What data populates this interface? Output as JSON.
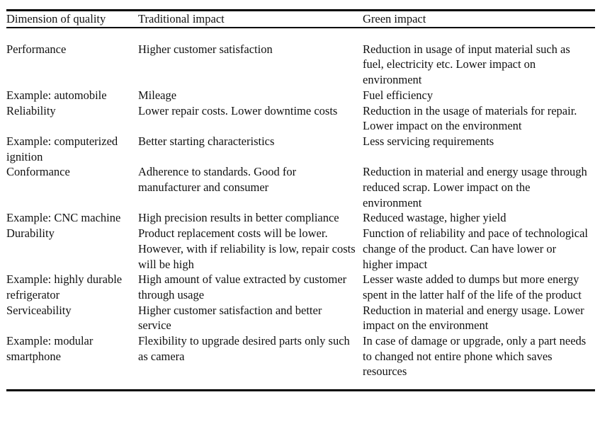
{
  "table": {
    "columns": [
      {
        "label": "Dimension of quality"
      },
      {
        "label": "Traditional impact"
      },
      {
        "label": "Green impact"
      }
    ],
    "rows": [
      {
        "dimension": "Performance",
        "traditional": "Higher customer satisfaction",
        "green": "Reduction in usage of input material such as fuel, electricity etc. Lower impact on environment"
      },
      {
        "dimension": "Example: automobile",
        "traditional": "Mileage",
        "green": "Fuel efficiency"
      },
      {
        "dimension": "Reliability",
        "traditional": "Lower repair costs. Lower downtime costs",
        "green": "Reduction in the usage of materials for repair. Lower impact on the environment"
      },
      {
        "dimension": "Example: computerized ignition",
        "traditional": "Better starting characteristics",
        "green": "Less servicing requirements"
      },
      {
        "dimension": "Conformance",
        "traditional": "Adherence to standards. Good for manufacturer and consumer",
        "green": "Reduction in material and energy usage through reduced scrap. Lower impact on the environment"
      },
      {
        "dimension": "Example: CNC machine",
        "traditional": "High precision results in better compliance",
        "green": "Reduced wastage, higher yield"
      },
      {
        "dimension": "Durability",
        "traditional": "Product replacement costs will be lower. However, with if reliability is low, repair costs will be high",
        "green": "Function of reliability and pace of technological change of the product. Can have lower or higher impact"
      },
      {
        "dimension": "Example: highly durable refrigerator",
        "traditional": "High amount of value extracted by customer through usage",
        "green": "Lesser waste added to dumps but more energy spent in the latter half of the life of the product"
      },
      {
        "dimension": "Serviceability",
        "traditional": "Higher customer satisfaction and better service",
        "green": "Reduction in material and energy usage. Lower impact on the environment"
      },
      {
        "dimension": "Example: modular smartphone",
        "traditional": "Flexibility to upgrade desired parts only such as camera",
        "green": "In case of damage or upgrade, only a part needs to changed not entire phone which saves resources"
      }
    ]
  },
  "colors": {
    "background": "#ffffff",
    "text": "#111111",
    "rule": "#000000"
  }
}
